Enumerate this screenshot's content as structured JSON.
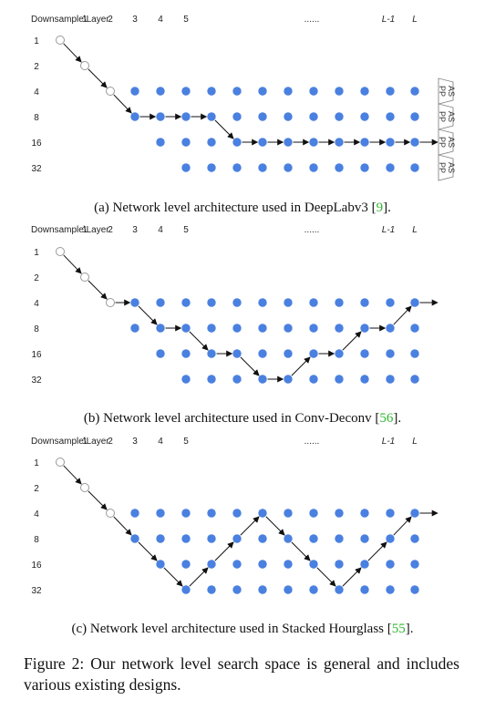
{
  "header": {
    "corner_label": "Downsample\\Layer",
    "layer_labels": [
      "1",
      "2",
      "3",
      "4",
      "5"
    ],
    "ellipsis": "......",
    "last_labels": [
      "L-1",
      "L"
    ]
  },
  "row_labels": [
    "1",
    "2",
    "4",
    "8",
    "16",
    "32"
  ],
  "aspp_label": "ASPP",
  "panels": [
    {
      "id": "a",
      "caption_prefix": "(a) Network level architecture used in DeepLabv3 [",
      "cite": "9",
      "caption_suffix": "].",
      "path": [
        [
          0,
          0
        ],
        [
          1,
          1
        ],
        [
          2,
          2
        ],
        [
          3,
          3
        ],
        [
          4,
          3
        ],
        [
          5,
          3
        ],
        [
          6,
          3
        ],
        [
          7,
          4
        ],
        [
          8,
          4
        ],
        [
          9,
          4
        ],
        [
          10,
          4
        ],
        [
          11,
          4
        ],
        [
          12,
          4
        ],
        [
          13,
          4
        ],
        [
          14,
          4
        ]
      ],
      "out_arrow": true,
      "aspp": true
    },
    {
      "id": "b",
      "caption_prefix": "(b) Network level architecture used in Conv-Deconv [",
      "cite": "56",
      "caption_suffix": "].",
      "path": [
        [
          0,
          0
        ],
        [
          1,
          1
        ],
        [
          2,
          2
        ],
        [
          3,
          2
        ],
        [
          4,
          3
        ],
        [
          5,
          3
        ],
        [
          6,
          4
        ],
        [
          7,
          4
        ],
        [
          8,
          5
        ],
        [
          9,
          5
        ],
        [
          10,
          4
        ],
        [
          11,
          4
        ],
        [
          12,
          3
        ],
        [
          13,
          3
        ],
        [
          14,
          2
        ]
      ],
      "out_arrow": true,
      "aspp": false
    },
    {
      "id": "c",
      "caption_prefix": "(c) Network level architecture used in Stacked Hourglass [",
      "cite": "55",
      "caption_suffix": "].",
      "path": [
        [
          0,
          0
        ],
        [
          1,
          1
        ],
        [
          2,
          2
        ],
        [
          3,
          3
        ],
        [
          4,
          4
        ],
        [
          5,
          5
        ],
        [
          6,
          4
        ],
        [
          7,
          3
        ],
        [
          8,
          2
        ],
        [
          9,
          3
        ],
        [
          10,
          4
        ],
        [
          11,
          5
        ],
        [
          12,
          4
        ],
        [
          13,
          3
        ],
        [
          14,
          2
        ]
      ],
      "out_arrow": true,
      "aspp": false
    }
  ],
  "figure_caption": "Figure 2: Our network level search space is general and includes various existing designs."
}
